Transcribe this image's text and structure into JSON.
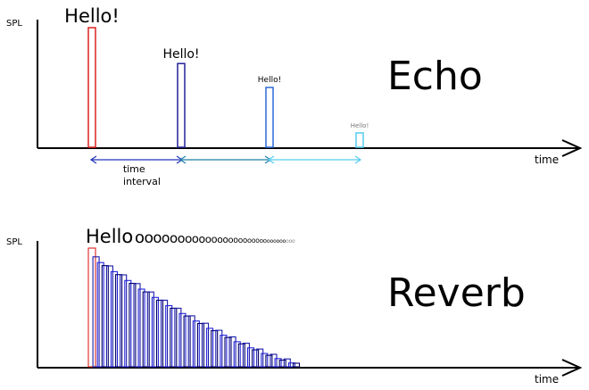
{
  "echo_panel": {
    "y_axis_label": "SPL",
    "x_axis_label": "time",
    "title": "Echo",
    "pulse_labels": [
      "Hello!",
      "Hello!",
      "Hello!",
      "Hello!"
    ],
    "pulse_levels": [
      1.0,
      0.7,
      0.5,
      0.12
    ],
    "pulse_colors": [
      "#dd2222",
      "#22229a",
      "#2a6ad8",
      "#55ccee"
    ],
    "interval_label": [
      "time",
      "interval"
    ],
    "interval_colors": [
      "#2233bb",
      "#1f7fa8",
      "#55ccee"
    ]
  },
  "reverb_panel": {
    "y_axis_label": "SPL",
    "x_axis_label": "time",
    "title": "Reverb",
    "word": "Hello",
    "decay_letters": "ooooooooooooooooooooooooooooooo",
    "first_color": "#dd2222",
    "tail_colors": [
      "#000066",
      "#1a1aaa",
      "#2222dd"
    ]
  }
}
